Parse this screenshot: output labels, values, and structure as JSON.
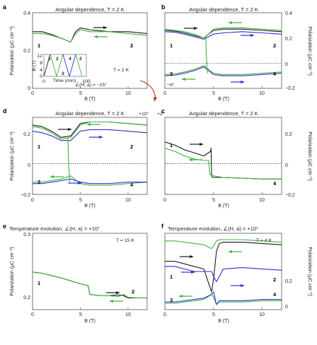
{
  "colors": {
    "black": "#1a1a1a",
    "green": "#3cb43c",
    "blue": "#2f2fd0",
    "red": "#b5341c",
    "frame": "#555555"
  },
  "panel_labels": [
    "a",
    "b",
    "c",
    "d",
    "e",
    "f"
  ],
  "titles": {
    "a": "Angular dependence, T = 2 K",
    "b": "Angular dependence, T = 2 K",
    "c": "Angular dependence, T = 2 K",
    "d": "Angular dependence, T = 2 K",
    "e": "Temperature evolution, ∠(H, a) = +10°",
    "f": "Temperature evolution, ∠(H, a) = +10°"
  },
  "axes": {
    "ylabel": "Polarization (μC cm⁻²)",
    "xlabel": "B (T)",
    "xticks": [
      "0",
      "5",
      "10"
    ],
    "yticks_abd": [
      "0.4",
      "0.2",
      "0",
      "−0.2"
    ],
    "yticks_c": [
      "0.2",
      "0",
      "−0.2"
    ],
    "yticks_e": [
      "0.3",
      "0.2"
    ],
    "yticks_f": [
      "0.2",
      "0"
    ]
  },
  "annotations": {
    "a_T": "T = 2 K",
    "a_angle": "∠(H, a) = −15°",
    "b_angle": "−9°",
    "d_angle": "+10°",
    "c_angle": "+2°",
    "e_T": "T = 15 K",
    "f_T": "T = 4 K",
    "inset_ylabel": "B (T)",
    "inset_xlabel": "Time (min)",
    "inset_yticks": [
      "12",
      "8",
      "4",
      "0"
    ],
    "inset_xticks": [
      "0",
      "100"
    ]
  },
  "sweep_numbers": [
    "1",
    "2",
    "3",
    "4"
  ],
  "chart_data": [
    {
      "panel": "a",
      "type": "line",
      "title": "Angular dependence, T = 2 K",
      "xlabel": "B (T)",
      "ylabel": "Polarization (μC cm⁻²)",
      "xlim": [
        0,
        12
      ],
      "ylim": [
        0,
        0.4
      ],
      "series": [
        {
          "color": "black",
          "x": [
            0,
            1,
            2,
            3,
            4,
            4.5,
            5,
            6,
            8,
            10,
            12
          ],
          "values": [
            0.3,
            0.3,
            0.285,
            0.265,
            0.245,
            0.3,
            0.32,
            0.31,
            0.3,
            0.3,
            0.29
          ]
        },
        {
          "color": "green",
          "x": [
            0,
            1,
            2,
            3,
            4,
            4.5,
            5,
            6,
            8,
            10,
            12
          ],
          "values": [
            0.29,
            0.29,
            0.28,
            0.265,
            0.245,
            0.29,
            0.31,
            0.3,
            0.3,
            0.29,
            0.28
          ]
        }
      ],
      "inset": {
        "xlabel": "Time (min)",
        "ylabel": "B (T)",
        "xlim": [
          0,
          100
        ],
        "ylim": [
          0,
          12
        ],
        "series": [
          {
            "color": "black",
            "x": [
              0,
              15
            ],
            "values": [
              0,
              12
            ]
          },
          {
            "color": "green",
            "x": [
              15,
              30,
              45
            ],
            "values": [
              12,
              0,
              12
            ]
          },
          {
            "color": "blue",
            "x": [
              45,
              60,
              75
            ],
            "values": [
              12,
              0,
              12
            ]
          },
          {
            "color": "green",
            "x": [
              75,
              90
            ],
            "values": [
              12,
              0
            ]
          }
        ]
      }
    },
    {
      "panel": "b",
      "type": "line",
      "title": "Angular dependence, T = 2 K",
      "xlabel": "B (T)",
      "ylabel": "Polarization (μC cm⁻²)",
      "xlim": [
        0,
        12
      ],
      "ylim": [
        -0.2,
        0.4
      ],
      "series": [
        {
          "color": "black",
          "x": [
            0,
            1,
            2,
            3,
            4,
            4.5,
            5,
            6,
            8,
            10,
            12
          ],
          "values": [
            0.26,
            0.255,
            0.24,
            0.22,
            0.2,
            0.23,
            0.26,
            0.27,
            0.27,
            0.26,
            0.25
          ]
        },
        {
          "color": "green",
          "x": [
            0,
            1,
            2,
            3,
            4,
            4.5,
            5,
            6,
            8,
            10,
            12
          ],
          "values": [
            0.27,
            0.26,
            0.25,
            0.23,
            0.2,
            0.23,
            0.27,
            0.28,
            0.28,
            0.27,
            0.26
          ]
        },
        {
          "color": "blue",
          "x": [
            0,
            1,
            2,
            3,
            4,
            4.5,
            5,
            6,
            8,
            10,
            12
          ],
          "values": [
            0.25,
            0.245,
            0.23,
            0.21,
            0.19,
            0.21,
            0.23,
            0.24,
            0.25,
            0.24,
            0.23
          ]
        },
        {
          "color": "green",
          "x": [
            0,
            1,
            2,
            3,
            4,
            4.5,
            5,
            6,
            8,
            10,
            12
          ],
          "values": [
            -0.09,
            -0.085,
            -0.07,
            -0.05,
            -0.02,
            -0.05,
            -0.08,
            -0.09,
            -0.09,
            -0.08,
            -0.07
          ]
        },
        {
          "color": "blue",
          "x": [
            0,
            1,
            2,
            3,
            4,
            4.5,
            5,
            6,
            8,
            10,
            12
          ],
          "values": [
            -0.1,
            -0.095,
            -0.08,
            -0.06,
            -0.03,
            -0.06,
            -0.09,
            -0.1,
            -0.1,
            -0.09,
            -0.08
          ]
        },
        {
          "color": "green",
          "x": [
            4.2,
            4.25,
            4.3,
            4.35,
            4.4
          ],
          "values": [
            0.22,
            0.1,
            0.0,
            -0.05,
            -0.08
          ]
        }
      ]
    },
    {
      "panel": "d",
      "type": "line",
      "title": "Angular dependence, T = 2 K",
      "xlabel": "B (T)",
      "ylabel": "Polarization (μC cm⁻²)",
      "xlim": [
        0,
        12
      ],
      "ylim": [
        -0.2,
        0.3
      ],
      "series": [
        {
          "color": "black",
          "x": [
            0,
            1,
            2,
            3,
            4,
            5,
            6,
            8,
            10,
            12
          ],
          "values": [
            0.25,
            0.24,
            0.21,
            0.17,
            0.18,
            0.26,
            0.27,
            0.27,
            0.26,
            0.25
          ]
        },
        {
          "color": "green",
          "x": [
            0,
            1,
            2,
            3,
            4,
            5,
            6,
            8,
            10,
            12
          ],
          "values": [
            0.24,
            0.23,
            0.2,
            0.16,
            0.17,
            0.25,
            0.27,
            0.27,
            0.26,
            0.25
          ]
        },
        {
          "color": "blue",
          "x": [
            0,
            1,
            2,
            3,
            4,
            5,
            6,
            8,
            10,
            12
          ],
          "values": [
            0.21,
            0.2,
            0.18,
            0.15,
            0.15,
            0.21,
            0.22,
            0.22,
            0.21,
            0.2
          ]
        },
        {
          "color": "green",
          "x": [
            0,
            1,
            2,
            3,
            4,
            5,
            6,
            8,
            10,
            12
          ],
          "values": [
            -0.12,
            -0.12,
            -0.11,
            -0.1,
            -0.08,
            -0.13,
            -0.14,
            -0.14,
            -0.13,
            -0.12
          ]
        },
        {
          "color": "blue",
          "x": [
            0,
            1,
            2,
            3,
            4,
            5,
            6,
            8,
            10,
            12
          ],
          "values": [
            -0.13,
            -0.13,
            -0.12,
            -0.11,
            -0.1,
            -0.12,
            -0.13,
            -0.13,
            -0.12,
            -0.12
          ]
        },
        {
          "color": "green",
          "x": [
            3.7,
            3.75,
            3.8,
            3.85,
            3.9
          ],
          "values": [
            0.17,
            0.05,
            -0.03,
            -0.08,
            -0.12
          ]
        }
      ]
    },
    {
      "panel": "c",
      "type": "line",
      "title": "Angular dependence, T = 2 K",
      "xlabel": "B (T)",
      "ylabel": "Polarization (μC cm⁻²)",
      "xlim": [
        0,
        12
      ],
      "ylim": [
        -0.2,
        0.3
      ],
      "series": [
        {
          "color": "black",
          "x": [
            0,
            1,
            2,
            3,
            4,
            4.7,
            4.75,
            4.8,
            4.9,
            5,
            6,
            8,
            10,
            12
          ],
          "values": [
            0.14,
            0.12,
            0.09,
            0.07,
            0.05,
            0.08,
            0.1,
            -0.08,
            -0.09,
            -0.09,
            -0.09,
            -0.095,
            -0.1,
            -0.1
          ]
        },
        {
          "color": "green",
          "x": [
            0,
            1,
            2,
            3,
            4,
            4.5,
            4.6,
            5,
            6,
            8,
            10,
            12
          ],
          "values": [
            0.1,
            0.08,
            0.05,
            0.03,
            0.02,
            0.02,
            -0.07,
            -0.08,
            -0.09,
            -0.095,
            -0.1,
            -0.1
          ]
        }
      ]
    },
    {
      "panel": "e",
      "type": "line",
      "title": "Temperature evolution, ∠(H, a) = +10°",
      "xlabel": "B (T)",
      "ylabel": "Polarization (μC cm⁻²)",
      "xlim": [
        0,
        12
      ],
      "ylim": [
        0.17,
        0.3
      ],
      "series": [
        {
          "color": "black",
          "x": [
            0,
            1,
            2,
            3,
            4,
            5,
            5.8,
            6,
            7,
            8,
            9,
            9.5,
            10,
            11,
            12
          ],
          "values": [
            0.234,
            0.232,
            0.228,
            0.224,
            0.219,
            0.214,
            0.211,
            0.196,
            0.194,
            0.194,
            0.195,
            0.194,
            0.19,
            0.19,
            0.19
          ]
        },
        {
          "color": "green",
          "x": [
            0,
            1,
            2,
            3,
            4,
            5,
            5.8,
            6,
            7,
            8,
            9,
            9.5,
            10,
            11,
            12
          ],
          "values": [
            0.234,
            0.232,
            0.228,
            0.224,
            0.219,
            0.214,
            0.211,
            0.196,
            0.194,
            0.194,
            0.192,
            0.196,
            0.191,
            0.19,
            0.19
          ]
        }
      ]
    },
    {
      "panel": "f",
      "type": "line",
      "title": "Temperature evolution, ∠(H, a) = +10°",
      "xlabel": "B (T)",
      "ylabel": "Polarization (μC cm⁻²)",
      "xlim": [
        0,
        12
      ],
      "ylim": [
        -0.02,
        0.28
      ],
      "series": [
        {
          "color": "black",
          "x": [
            0,
            1,
            2,
            3,
            4,
            4.8,
            5,
            5.3,
            5.6,
            6,
            8,
            10,
            12
          ],
          "values": [
            0.17,
            0.17,
            0.16,
            0.15,
            0.14,
            0.05,
            0.1,
            0.21,
            0.24,
            0.245,
            0.245,
            0.24,
            0.235
          ]
        },
        {
          "color": "green",
          "x": [
            0,
            1,
            2,
            3,
            4,
            4.8,
            5,
            5.3,
            5.6,
            6,
            8,
            10,
            12
          ],
          "values": [
            0.25,
            0.25,
            0.245,
            0.24,
            0.235,
            0.22,
            0.23,
            0.25,
            0.255,
            0.255,
            0.255,
            0.25,
            0.245
          ]
        },
        {
          "color": "blue",
          "x": [
            0,
            1,
            2,
            3,
            4,
            4.8,
            5,
            5.3,
            5.6,
            6,
            8,
            10,
            12
          ],
          "values": [
            0.15,
            0.15,
            0.14,
            0.13,
            0.13,
            0.13,
            0.11,
            0.09,
            0.11,
            0.14,
            0.145,
            0.14,
            0.135
          ]
        },
        {
          "color": "green",
          "x": [
            0,
            1,
            2,
            3,
            4,
            4.8,
            5,
            5.3,
            5.6,
            6,
            8,
            10,
            12
          ],
          "values": [
            0.005,
            0.005,
            0.01,
            0.015,
            0.02,
            0.04,
            0.03,
            0.0,
            0.01,
            0.01,
            0.01,
            0.015,
            0.015
          ]
        },
        {
          "color": "blue",
          "x": [
            0,
            1,
            2,
            3,
            4,
            4.8,
            5,
            5.3,
            5.6,
            6,
            8,
            10,
            12
          ],
          "values": [
            0.01,
            0.01,
            0.015,
            0.02,
            0.025,
            0.04,
            0.05,
            0.0,
            0.015,
            0.015,
            0.015,
            0.02,
            0.02
          ]
        }
      ]
    }
  ]
}
